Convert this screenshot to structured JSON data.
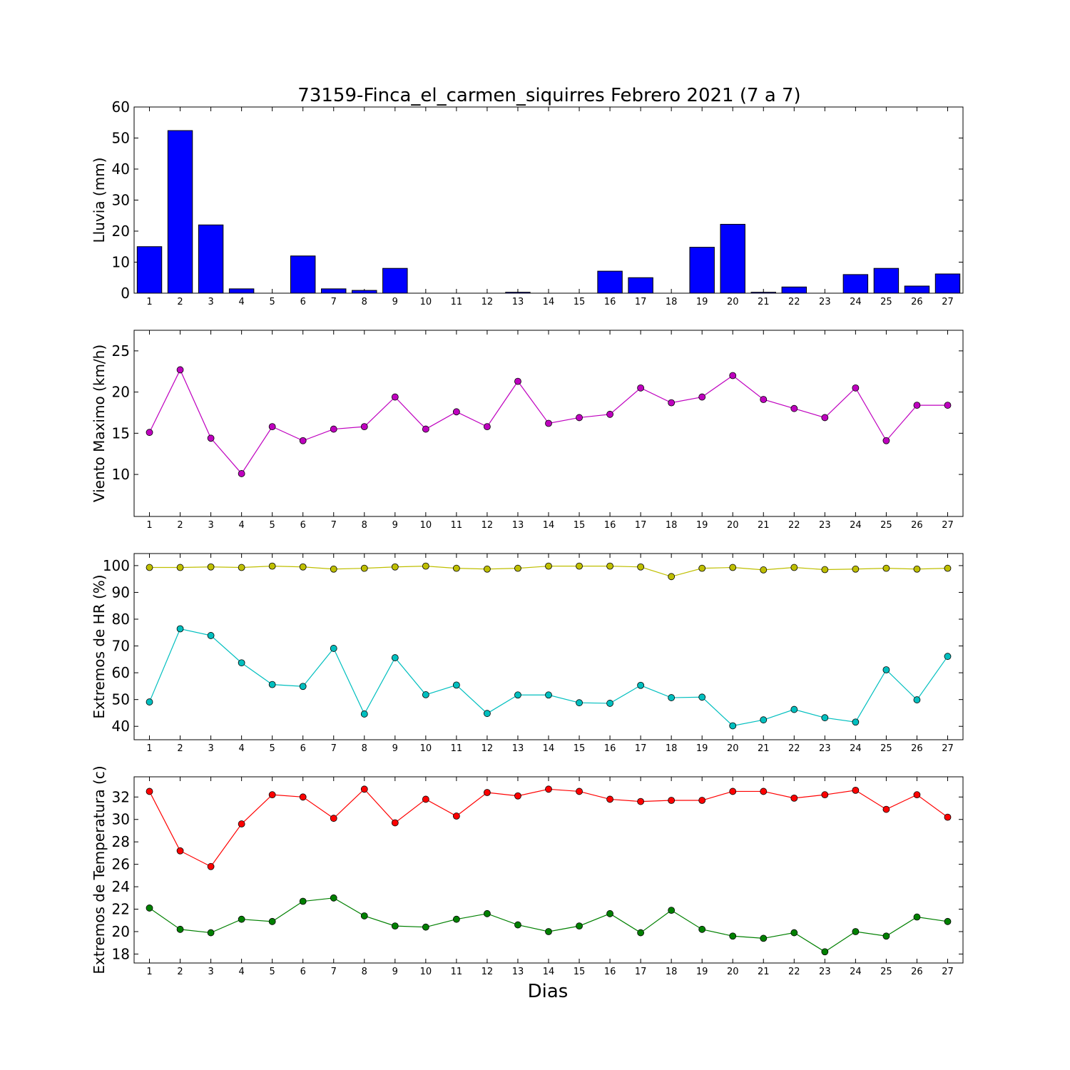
{
  "figure": {
    "title": "73159-Finca_el_carmen_siquirres Febrero 2021  (7 a 7)",
    "xlabel": "Dias"
  },
  "chart_data": [
    {
      "type": "bar",
      "ylabel": "Lluvia (mm)",
      "ylim": [
        0,
        60
      ],
      "yticks": [
        0,
        10,
        20,
        30,
        40,
        50,
        60
      ],
      "categories": [
        1,
        2,
        3,
        4,
        5,
        6,
        7,
        8,
        9,
        10,
        11,
        12,
        13,
        14,
        15,
        16,
        17,
        18,
        19,
        20,
        21,
        22,
        23,
        24,
        25,
        26,
        27
      ],
      "series": [
        {
          "values": [
            15,
            52.4,
            22,
            1.4,
            0,
            12,
            1.4,
            0.9,
            8,
            0,
            0,
            0,
            0.3,
            0,
            0,
            7.1,
            5,
            0,
            14.8,
            22.2,
            0.3,
            2,
            0,
            6,
            8,
            2.3,
            6.2
          ],
          "color": "#0000ff"
        }
      ]
    },
    {
      "type": "line",
      "ylabel": "Viento Maximo (km/h)",
      "ylim": [
        4.9,
        27.5
      ],
      "yticks": [
        10,
        15,
        20,
        25
      ],
      "categories": [
        1,
        2,
        3,
        4,
        5,
        6,
        7,
        8,
        9,
        10,
        11,
        12,
        13,
        14,
        15,
        16,
        17,
        18,
        19,
        20,
        21,
        22,
        23,
        24,
        25,
        26,
        27
      ],
      "series": [
        {
          "values": [
            15.1,
            22.7,
            14.4,
            10.1,
            15.8,
            14.1,
            15.5,
            15.8,
            19.4,
            15.5,
            17.6,
            15.8,
            21.3,
            16.2,
            16.9,
            17.3,
            20.5,
            18.7,
            19.4,
            22,
            19.1,
            18,
            16.9,
            20.5,
            14.1,
            18.4,
            18.4
          ],
          "color": "#bf00bf"
        }
      ]
    },
    {
      "type": "line",
      "ylabel": "Extremos de HR (%)",
      "ylim": [
        35,
        104.5
      ],
      "yticks": [
        40,
        50,
        60,
        70,
        80,
        90,
        100
      ],
      "categories": [
        1,
        2,
        3,
        4,
        5,
        6,
        7,
        8,
        9,
        10,
        11,
        12,
        13,
        14,
        15,
        16,
        17,
        18,
        19,
        20,
        21,
        22,
        23,
        24,
        25,
        26,
        27
      ],
      "series": [
        {
          "values": [
            99.3,
            99.3,
            99.5,
            99.3,
            99.8,
            99.5,
            98.7,
            99,
            99.5,
            99.8,
            99,
            98.7,
            99,
            99.8,
            99.8,
            99.8,
            99.5,
            95.9,
            99,
            99.3,
            98.4,
            99.3,
            98.5,
            98.7,
            99,
            98.7,
            99
          ],
          "color": "#bfbf00"
        },
        {
          "values": [
            49.1,
            76.4,
            73.9,
            63.7,
            55.6,
            54.9,
            69.1,
            44.6,
            65.6,
            51.8,
            55.4,
            44.8,
            51.7,
            51.7,
            48.8,
            48.6,
            55.3,
            50.7,
            50.9,
            40.2,
            42.4,
            46.3,
            43.2,
            41.6,
            61.1,
            49.9,
            66.1
          ],
          "color": "#00bfbf"
        }
      ]
    },
    {
      "type": "line",
      "ylabel": "Extremos de Temperatura (c)",
      "ylim": [
        17.2,
        33.8
      ],
      "yticks": [
        18,
        20,
        22,
        24,
        26,
        28,
        30,
        32
      ],
      "categories": [
        1,
        2,
        3,
        4,
        5,
        6,
        7,
        8,
        9,
        10,
        11,
        12,
        13,
        14,
        15,
        16,
        17,
        18,
        19,
        20,
        21,
        22,
        23,
        24,
        25,
        26,
        27
      ],
      "series": [
        {
          "values": [
            32.5,
            27.2,
            25.8,
            29.6,
            32.2,
            32,
            30.1,
            32.7,
            29.7,
            31.8,
            30.3,
            32.4,
            32.1,
            32.7,
            32.5,
            31.8,
            31.6,
            31.7,
            31.7,
            32.5,
            32.5,
            31.9,
            32.2,
            32.6,
            30.9,
            32.2,
            30.2
          ],
          "color": "#ff0000"
        },
        {
          "values": [
            22.1,
            20.2,
            19.9,
            21.1,
            20.9,
            22.7,
            23,
            21.4,
            20.5,
            20.4,
            21.1,
            21.6,
            20.6,
            20,
            20.5,
            21.6,
            19.9,
            21.9,
            20.2,
            19.6,
            19.4,
            19.9,
            18.2,
            20,
            19.6,
            21.3,
            20.9
          ],
          "color": "#008000"
        }
      ]
    }
  ]
}
